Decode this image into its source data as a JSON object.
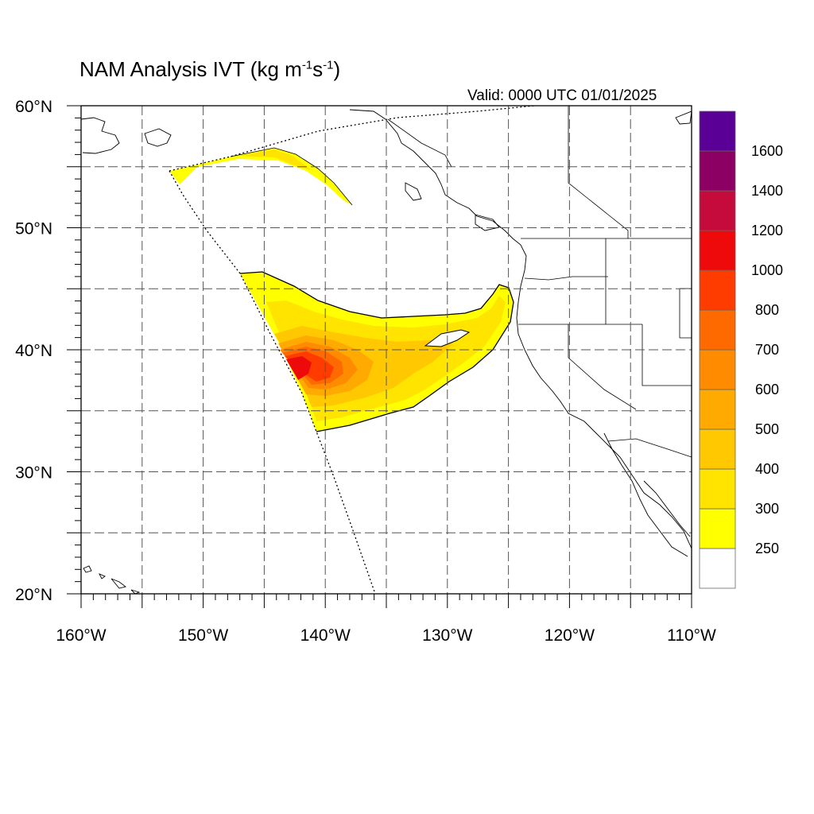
{
  "header": {
    "title_main": "NAM Analysis IVT (kg m",
    "title_exp1": "-1",
    "title_mid": "s",
    "title_exp2": "-1",
    "title_end": ")",
    "valid": "Valid: 0000 UTC 01/01/2025"
  },
  "map": {
    "lon_range": [
      -160,
      -110
    ],
    "lat_range": [
      20,
      60
    ],
    "lon_labels": [
      {
        "lon": -160,
        "label": "160°W"
      },
      {
        "lon": -150,
        "label": "150°W"
      },
      {
        "lon": -140,
        "label": "140°W"
      },
      {
        "lon": -130,
        "label": "130°W"
      },
      {
        "lon": -120,
        "label": "120°W"
      },
      {
        "lon": -110,
        "label": "110°W"
      }
    ],
    "lat_labels": [
      {
        "lat": 60,
        "label": "60°N"
      },
      {
        "lat": 50,
        "label": "50°N"
      },
      {
        "lat": 40,
        "label": "40°N"
      },
      {
        "lat": 30,
        "label": "30°N"
      },
      {
        "lat": 20,
        "label": "20°N"
      }
    ],
    "grid_lon_step": 5,
    "grid_lat_step": 5,
    "gridlines": true
  },
  "colorbar": {
    "colors": [
      "#ffffff",
      "#ffff00",
      "#ffe400",
      "#ffc800",
      "#ffaa00",
      "#ff8c00",
      "#ff6a00",
      "#ff3c00",
      "#ee0a0a",
      "#c50a3c",
      "#8c0064",
      "#5a0096"
    ],
    "labels": [
      "250",
      "300",
      "400",
      "500",
      "600",
      "700",
      "800",
      "1000",
      "1200",
      "1400",
      "1600"
    ]
  }
}
